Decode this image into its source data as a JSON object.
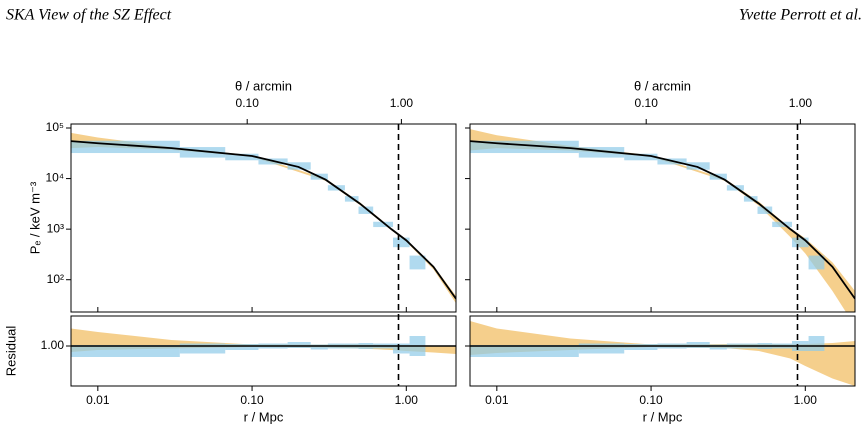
{
  "header": {
    "title": "SKA View of the SZ Effect",
    "author": "Yvette Perrott et al."
  },
  "chart_data": [
    {
      "type": "profile",
      "ylabel": "Pₑ / keV m⁻³",
      "xlabel": "r / Mpc",
      "x2label": "θ / arcmin",
      "log_x": true,
      "log_y": true,
      "show_ytick_labels": true,
      "xlim": [
        0.0067,
        2.1
      ],
      "xticks": [
        0.01,
        {
          "value": 0.1,
          "label": "0.10"
        },
        {
          "value": 1,
          "label": "1.00"
        }
      ],
      "x2lim": [
        0.0072,
        2.26
      ],
      "x2ticks": [
        {
          "value": 0.1,
          "label": "0.10"
        },
        {
          "value": 1,
          "label": "1.00"
        }
      ],
      "ylim": [
        23,
        120000
      ],
      "yticks": [
        {
          "value": 100000,
          "label": "10⁵"
        },
        {
          "value": 10000,
          "label": "10⁴"
        },
        {
          "value": 1000,
          "label": "10³"
        },
        {
          "value": 100,
          "label": "10²"
        }
      ],
      "model": {
        "color": "#000000",
        "x": [
          0.0067,
          0.01,
          0.03,
          0.1,
          0.2,
          0.3,
          0.5,
          0.8,
          1.0,
          1.5,
          2.1
        ],
        "y": [
          55000,
          50000,
          40000,
          28000,
          17000,
          9500,
          3200,
          1000,
          600,
          180,
          42
        ]
      },
      "band": {
        "color": "#f3c778",
        "x": [
          0.0067,
          0.01,
          0.03,
          0.1,
          0.3,
          0.5,
          0.8,
          1.0,
          1.5,
          2.1
        ],
        "lower": [
          40000,
          42000,
          37000,
          27000,
          9000,
          3000,
          950,
          560,
          160,
          34
        ],
        "upper": [
          80000,
          65000,
          42000,
          29000,
          10000,
          3400,
          1050,
          620,
          190,
          48
        ]
      },
      "bins": {
        "color": "#8ecbe8",
        "edges": [
          0.0067,
          0.034,
          0.067,
          0.11,
          0.17,
          0.24,
          0.31,
          0.4,
          0.49,
          0.61,
          0.82,
          1.05,
          1.33
        ],
        "values": [
          44000,
          34000,
          27000,
          22000,
          18000,
          11000,
          6600,
          4000,
          2400,
          1250,
          560,
          230
        ],
        "errors": [
          12000,
          8000,
          4000,
          3000,
          3000,
          1500,
          800,
          500,
          400,
          150,
          120,
          70
        ]
      },
      "vline": 0.89,
      "residual": {
        "ylabel": "Residual",
        "ylim": [
          0.2,
          1.6
        ],
        "yticks": [
          {
            "value": 1,
            "label": "1.00"
          }
        ],
        "hline": 1,
        "band": {
          "x": [
            0.0067,
            0.01,
            0.03,
            0.1,
            0.3,
            0.5,
            0.8,
            1.0,
            1.5,
            2.1
          ],
          "lower": [
            0.88,
            0.92,
            0.95,
            0.98,
            0.97,
            0.95,
            0.92,
            0.9,
            0.87,
            0.84
          ],
          "upper": [
            1.35,
            1.28,
            1.12,
            1.03,
            1.03,
            1.03,
            1.02,
            1.02,
            1.01,
            1.0
          ]
        },
        "bins": {
          "values": [
            0.9,
            0.95,
            0.98,
            1.0,
            1.02,
            0.98,
            1.0,
            1.0,
            1.0,
            1.0,
            0.95,
            1.0
          ],
          "errors": [
            0.12,
            0.1,
            0.06,
            0.05,
            0.06,
            0.05,
            0.05,
            0.05,
            0.06,
            0.05,
            0.1,
            0.2
          ]
        }
      }
    },
    {
      "type": "profile",
      "xlabel": "r / Mpc",
      "x2label": "θ / arcmin",
      "log_x": true,
      "log_y": true,
      "show_ytick_labels": false,
      "xlim": [
        0.0067,
        2.1
      ],
      "xticks": [
        0.01,
        {
          "value": 0.1,
          "label": "0.10"
        },
        {
          "value": 1,
          "label": "1.00"
        }
      ],
      "x2lim": [
        0.0072,
        2.26
      ],
      "x2ticks": [
        {
          "value": 0.1,
          "label": "0.10"
        },
        {
          "value": 1,
          "label": "1.00"
        }
      ],
      "ylim": [
        23,
        120000
      ],
      "yticks": [
        100000,
        10000,
        1000,
        100
      ],
      "model": {
        "color": "#000000",
        "x": [
          0.0067,
          0.01,
          0.03,
          0.1,
          0.2,
          0.3,
          0.5,
          0.8,
          1.0,
          1.5,
          2.1
        ],
        "y": [
          55000,
          50000,
          40000,
          28000,
          17000,
          9500,
          3200,
          1000,
          600,
          180,
          42
        ]
      },
      "band": {
        "color": "#f3c778",
        "x": [
          0.0067,
          0.01,
          0.03,
          0.1,
          0.3,
          0.5,
          0.8,
          1.0,
          1.5,
          2.1
        ],
        "lower": [
          36000,
          40000,
          36000,
          27000,
          9000,
          2900,
          700,
          330,
          60,
          12
        ],
        "upper": [
          95000,
          72000,
          44000,
          29000,
          10000,
          3500,
          1050,
          660,
          220,
          60
        ]
      },
      "bins": {
        "color": "#8ecbe8",
        "edges": [
          0.0067,
          0.034,
          0.067,
          0.11,
          0.17,
          0.24,
          0.31,
          0.4,
          0.49,
          0.61,
          0.82,
          1.05,
          1.33
        ],
        "values": [
          44000,
          34000,
          27000,
          22000,
          18000,
          11000,
          6600,
          4000,
          2400,
          1250,
          560,
          230
        ],
        "errors": [
          12000,
          8000,
          4000,
          3000,
          3000,
          1500,
          800,
          500,
          400,
          150,
          120,
          70
        ]
      },
      "vline": 0.89,
      "residual": {
        "ylim": [
          0.2,
          1.6
        ],
        "yticks": [
          1
        ],
        "hline": 1,
        "band": {
          "x": [
            0.0067,
            0.01,
            0.03,
            0.1,
            0.3,
            0.5,
            0.8,
            1.0,
            1.5,
            2.1
          ],
          "lower": [
            0.82,
            0.86,
            0.92,
            0.98,
            0.96,
            0.9,
            0.75,
            0.6,
            0.35,
            0.2
          ],
          "upper": [
            1.5,
            1.35,
            1.15,
            1.03,
            1.04,
            1.04,
            1.03,
            1.04,
            1.06,
            1.1
          ]
        },
        "bins": {
          "values": [
            0.9,
            0.95,
            0.98,
            1.0,
            1.02,
            0.98,
            1.0,
            1.0,
            1.0,
            1.0,
            1.0,
            1.05
          ],
          "errors": [
            0.12,
            0.1,
            0.06,
            0.05,
            0.06,
            0.05,
            0.05,
            0.05,
            0.06,
            0.05,
            0.1,
            0.15
          ]
        }
      }
    }
  ]
}
